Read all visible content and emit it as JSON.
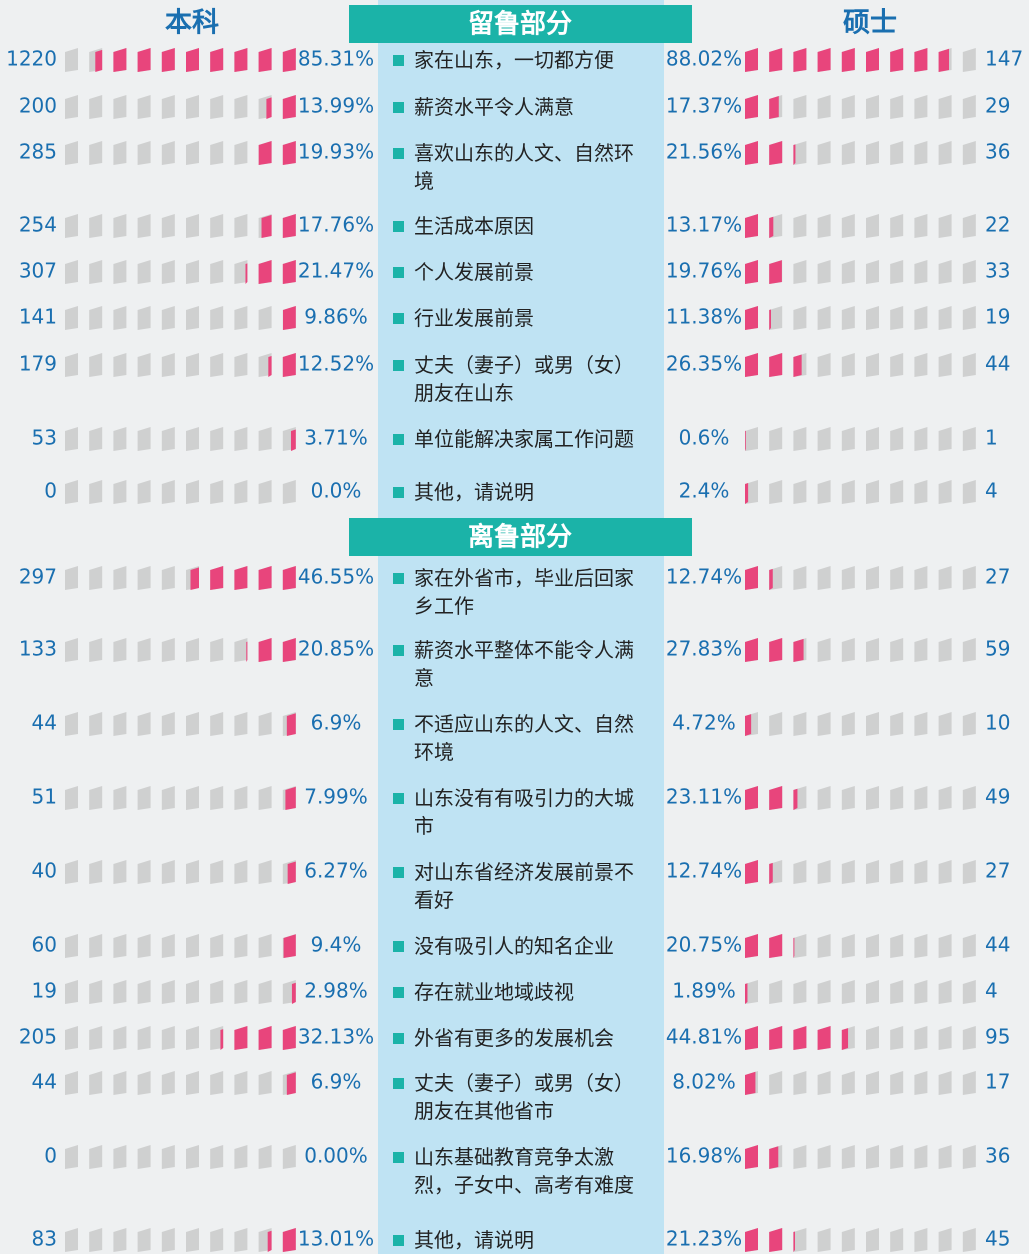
{
  "headers": {
    "left": "本科",
    "right": "硕士"
  },
  "sections": [
    {
      "title": "留鲁部分",
      "rows": [
        {
          "label": "家在山东，一切都方便",
          "undergrad": {
            "count": 1220,
            "percent": 85.31,
            "percent_label": "85.31%"
          },
          "master": {
            "count": 147,
            "percent": 88.02,
            "percent_label": "88.02%"
          }
        },
        {
          "label": "薪资水平令人满意",
          "undergrad": {
            "count": 200,
            "percent": 13.99,
            "percent_label": "13.99%"
          },
          "master": {
            "count": 29,
            "percent": 17.37,
            "percent_label": "17.37%"
          }
        },
        {
          "label": "喜欢山东的人文、自然环境",
          "undergrad": {
            "count": 285,
            "percent": 19.93,
            "percent_label": "19.93%"
          },
          "master": {
            "count": 36,
            "percent": 21.56,
            "percent_label": "21.56%"
          }
        },
        {
          "label": "生活成本原因",
          "undergrad": {
            "count": 254,
            "percent": 17.76,
            "percent_label": "17.76%"
          },
          "master": {
            "count": 22,
            "percent": 13.17,
            "percent_label": "13.17%"
          }
        },
        {
          "label": "个人发展前景",
          "undergrad": {
            "count": 307,
            "percent": 21.47,
            "percent_label": "21.47%"
          },
          "master": {
            "count": 33,
            "percent": 19.76,
            "percent_label": "19.76%"
          }
        },
        {
          "label": "行业发展前景",
          "undergrad": {
            "count": 141,
            "percent": 9.86,
            "percent_label": "9.86%"
          },
          "master": {
            "count": 19,
            "percent": 11.38,
            "percent_label": "11.38%"
          }
        },
        {
          "label": "丈夫（妻子）或男（女）朋友在山东",
          "undergrad": {
            "count": 179,
            "percent": 12.52,
            "percent_label": "12.52%"
          },
          "master": {
            "count": 44,
            "percent": 26.35,
            "percent_label": "26.35%"
          }
        },
        {
          "label": "单位能解决家属工作问题",
          "undergrad": {
            "count": 53,
            "percent": 3.71,
            "percent_label": "3.71%"
          },
          "master": {
            "count": 1,
            "percent": 0.6,
            "percent_label": "0.6%"
          }
        },
        {
          "label": "其他，请说明",
          "undergrad": {
            "count": 0,
            "percent": 0,
            "percent_label": "0.0%"
          },
          "master": {
            "count": 4,
            "percent": 2.4,
            "percent_label": "2.4%"
          }
        }
      ]
    },
    {
      "title": "离鲁部分",
      "rows": [
        {
          "label": "家在外省市，毕业后回家乡工作",
          "undergrad": {
            "count": 297,
            "percent": 46.55,
            "percent_label": "46.55%"
          },
          "master": {
            "count": 27,
            "percent": 12.74,
            "percent_label": "12.74%"
          }
        },
        {
          "label": "薪资水平整体不能令人满意",
          "undergrad": {
            "count": 133,
            "percent": 20.85,
            "percent_label": "20.85%"
          },
          "master": {
            "count": 59,
            "percent": 27.83,
            "percent_label": "27.83%"
          }
        },
        {
          "label": "不适应山东的人文、自然环境",
          "undergrad": {
            "count": 44,
            "percent": 6.9,
            "percent_label": "6.9%"
          },
          "master": {
            "count": 10,
            "percent": 4.72,
            "percent_label": "4.72%"
          }
        },
        {
          "label": "山东没有有吸引力的大城市",
          "undergrad": {
            "count": 51,
            "percent": 7.99,
            "percent_label": "7.99%"
          },
          "master": {
            "count": 49,
            "percent": 23.11,
            "percent_label": "23.11%"
          }
        },
        {
          "label": "对山东省经济发展前景不看好",
          "undergrad": {
            "count": 40,
            "percent": 6.27,
            "percent_label": "6.27%"
          },
          "master": {
            "count": 27,
            "percent": 12.74,
            "percent_label": "12.74%"
          }
        },
        {
          "label": "没有吸引人的知名企业",
          "undergrad": {
            "count": 60,
            "percent": 9.4,
            "percent_label": "9.4%"
          },
          "master": {
            "count": 44,
            "percent": 20.75,
            "percent_label": "20.75%"
          }
        },
        {
          "label": "存在就业地域歧视",
          "undergrad": {
            "count": 19,
            "percent": 2.98,
            "percent_label": "2.98%"
          },
          "master": {
            "count": 4,
            "percent": 1.89,
            "percent_label": "1.89%"
          }
        },
        {
          "label": "外省有更多的发展机会",
          "undergrad": {
            "count": 205,
            "percent": 32.13,
            "percent_label": "32.13%"
          },
          "master": {
            "count": 95,
            "percent": 44.81,
            "percent_label": "44.81%"
          }
        },
        {
          "label": "丈夫（妻子）或男（女）朋友在其他省市",
          "undergrad": {
            "count": 44,
            "percent": 6.9,
            "percent_label": "6.9%"
          },
          "master": {
            "count": 17,
            "percent": 8.02,
            "percent_label": "8.02%"
          }
        },
        {
          "label": "山东基础教育竞争太激烈，子女中、高考有难度",
          "undergrad": {
            "count": 0,
            "percent": 0,
            "percent_label": "0.00%"
          },
          "master": {
            "count": 36,
            "percent": 16.98,
            "percent_label": "16.98%"
          }
        },
        {
          "label": "其他，请说明",
          "undergrad": {
            "count": 83,
            "percent": 13.01,
            "percent_label": "13.01%"
          },
          "master": {
            "count": 45,
            "percent": 21.23,
            "percent_label": "21.23%"
          }
        }
      ]
    }
  ]
}
